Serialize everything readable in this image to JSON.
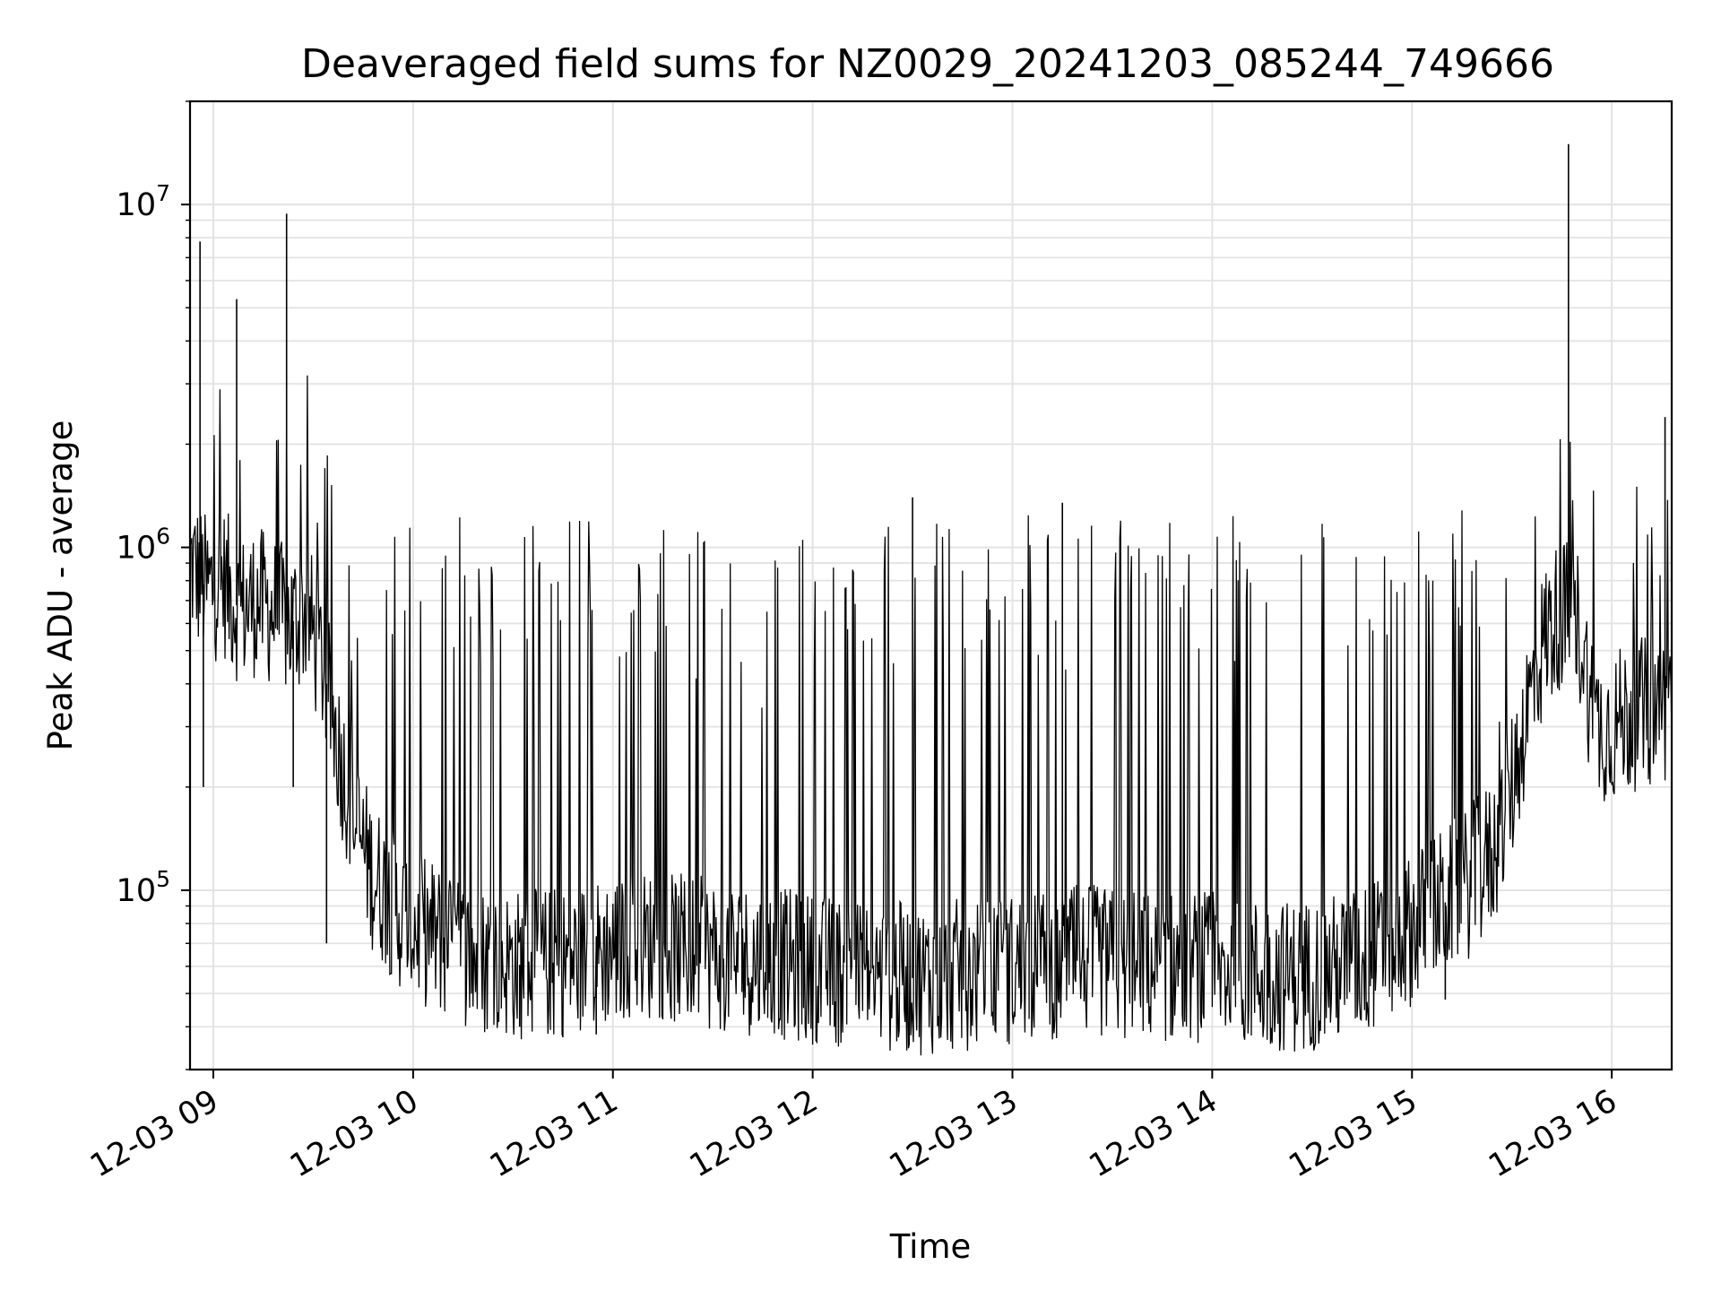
{
  "chart_data": {
    "type": "line",
    "title": "Deaveraged field sums for NZ0029_20241203_085244_749666",
    "xlabel": "Time",
    "ylabel": "Peak ADU - average",
    "yscale": "log",
    "ylim": [
      30000,
      20000000
    ],
    "xlim": [
      "2024-12-03 08:53",
      "2024-12-03 16:18"
    ],
    "grid": true,
    "x_ticks": [
      "12-03 09",
      "12-03 10",
      "12-03 11",
      "12-03 12",
      "12-03 13",
      "12-03 14",
      "12-03 15",
      "12-03 16"
    ],
    "y_ticks": [
      {
        "base": "10",
        "exp": "5",
        "value": 100000
      },
      {
        "base": "10",
        "exp": "6",
        "value": 1000000
      },
      {
        "base": "10",
        "exp": "7",
        "value": 10000000
      }
    ],
    "series": [
      {
        "color": "#000000",
        "x": [
          "2024-12-03 08:53",
          "2024-12-03 08:58",
          "2024-12-03 09:03",
          "2024-12-03 09:08",
          "2024-12-03 09:13",
          "2024-12-03 09:18",
          "2024-12-03 09:23",
          "2024-12-03 09:28",
          "2024-12-03 09:33",
          "2024-12-03 09:38",
          "2024-12-03 09:43",
          "2024-12-03 09:48",
          "2024-12-03 09:53",
          "2024-12-03 09:58",
          "2024-12-03 10:05",
          "2024-12-03 10:15",
          "2024-12-03 10:25",
          "2024-12-03 10:35",
          "2024-12-03 10:45",
          "2024-12-03 10:55",
          "2024-12-03 11:05",
          "2024-12-03 11:15",
          "2024-12-03 11:25",
          "2024-12-03 11:35",
          "2024-12-03 11:45",
          "2024-12-03 11:55",
          "2024-12-03 12:05",
          "2024-12-03 12:15",
          "2024-12-03 12:25",
          "2024-12-03 12:35",
          "2024-12-03 12:45",
          "2024-12-03 12:55",
          "2024-12-03 13:05",
          "2024-12-03 13:15",
          "2024-12-03 13:25",
          "2024-12-03 13:35",
          "2024-12-03 13:45",
          "2024-12-03 13:55",
          "2024-12-03 14:05",
          "2024-12-03 14:15",
          "2024-12-03 14:25",
          "2024-12-03 14:35",
          "2024-12-03 14:45",
          "2024-12-03 14:55",
          "2024-12-03 15:05",
          "2024-12-03 15:15",
          "2024-12-03 15:25",
          "2024-12-03 15:30",
          "2024-12-03 15:35",
          "2024-12-03 15:40",
          "2024-12-03 15:45",
          "2024-12-03 15:50",
          "2024-12-03 15:55",
          "2024-12-03 16:00",
          "2024-12-03 16:05",
          "2024-12-03 16:10",
          "2024-12-03 16:15",
          "2024-12-03 16:18"
        ],
        "y": [
          900000,
          750000,
          800000,
          650000,
          700000,
          650000,
          600000,
          650000,
          450000,
          250000,
          150000,
          110000,
          95000,
          80000,
          75000,
          65000,
          62000,
          60000,
          62000,
          65000,
          70000,
          68000,
          66000,
          64000,
          62000,
          60000,
          58000,
          57000,
          56000,
          55000,
          57000,
          58000,
          60000,
          62000,
          62000,
          60000,
          60000,
          60000,
          58000,
          57000,
          56000,
          58000,
          62000,
          70000,
          85000,
          100000,
          130000,
          200000,
          350000,
          550000,
          650000,
          600000,
          300000,
          300000,
          320000,
          330000,
          340000,
          350000
        ],
        "spikes": [
          {
            "x": "2024-12-03 08:56",
            "y": 7800000
          },
          {
            "x": "2024-12-03 09:07",
            "y": 5300000
          },
          {
            "x": "2024-12-03 09:22",
            "y": 9400000
          },
          {
            "x": "2024-12-03 12:30",
            "y": 1400000
          },
          {
            "x": "2024-12-03 13:15",
            "y": 1350000
          },
          {
            "x": "2024-12-03 15:47",
            "y": 15000000
          },
          {
            "x": "2024-12-03 16:16",
            "y": 2400000
          }
        ],
        "dips": [
          {
            "x": "2024-12-03 08:57",
            "y": 200000
          },
          {
            "x": "2024-12-03 09:24",
            "y": 200000
          },
          {
            "x": "2024-12-03 09:34",
            "y": 70000
          },
          {
            "x": "2024-12-03 10:32",
            "y": 40000
          },
          {
            "x": "2024-12-03 10:55",
            "y": 38000
          },
          {
            "x": "2024-12-03 14:25",
            "y": 41000
          },
          {
            "x": "2024-12-03 15:10",
            "y": 48000
          }
        ]
      }
    ]
  }
}
